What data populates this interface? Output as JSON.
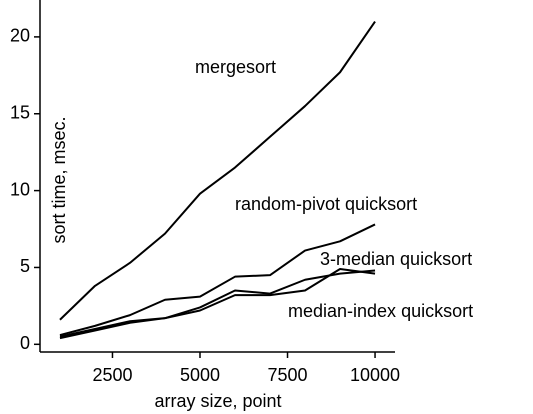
{
  "chart_data": {
    "type": "line",
    "x_label": "array size, point",
    "y_label": "sort time, msec.",
    "x": [
      1000,
      2000,
      3000,
      4000,
      5000,
      6000,
      7000,
      8000,
      9000,
      10000
    ],
    "series": [
      {
        "name": "mergesort",
        "color": "#000000",
        "values": [
          1.6,
          3.8,
          5.3,
          7.2,
          9.8,
          11.5,
          13.5,
          15.5,
          17.7,
          21.0
        ]
      },
      {
        "name": "random-pivot quicksort",
        "color": "#000000",
        "values": [
          0.6,
          1.2,
          1.9,
          2.9,
          3.1,
          4.4,
          4.5,
          6.1,
          6.7,
          7.8
        ]
      },
      {
        "name": "3-median quicksort",
        "color": "#000000",
        "values": [
          0.5,
          1.0,
          1.5,
          1.7,
          2.4,
          3.5,
          3.3,
          4.2,
          4.6,
          4.8
        ]
      },
      {
        "name": "median-index quicksort",
        "color": "#000000",
        "values": [
          0.4,
          0.9,
          1.4,
          1.7,
          2.2,
          3.2,
          3.2,
          3.5,
          4.9,
          4.6
        ]
      }
    ],
    "xlim": [
      430,
      10570
    ],
    "ylim": [
      -0.5,
      22.4
    ],
    "xticks": [
      2500,
      5000,
      7500,
      10000
    ],
    "yticks": [
      0,
      5,
      10,
      15,
      20
    ],
    "grid": false
  }
}
